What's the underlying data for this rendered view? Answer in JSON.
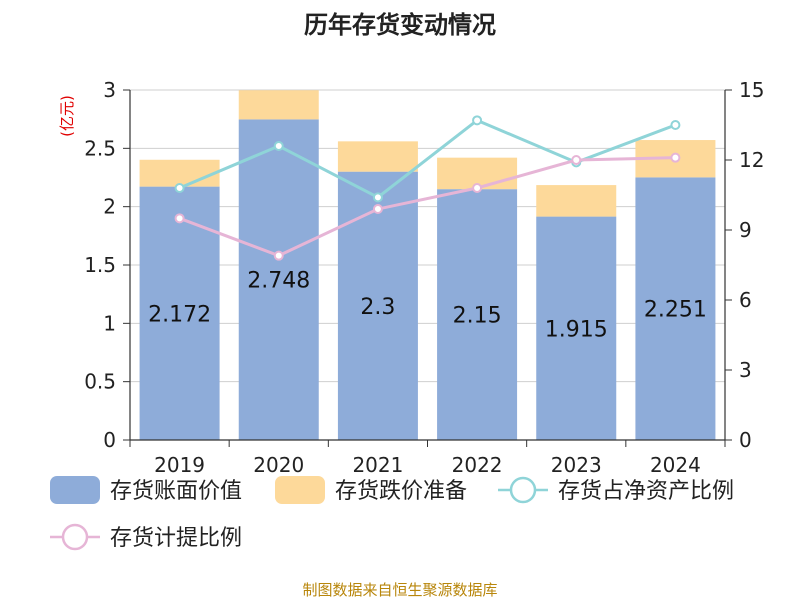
{
  "chart_data": {
    "type": "bar",
    "title": "历年存货变动情况",
    "categories": [
      "2019",
      "2020",
      "2021",
      "2022",
      "2023",
      "2024"
    ],
    "left_axis": {
      "unit": "(亿元)",
      "min": 0,
      "max": 3,
      "ticks": [
        "0",
        "0.5",
        "1",
        "1.5",
        "2",
        "2.5",
        "3"
      ]
    },
    "right_axis": {
      "min": 0,
      "max": 15,
      "ticks": [
        "0",
        "3",
        "6",
        "9",
        "12",
        "15"
      ]
    },
    "bar_series": [
      {
        "name": "存货账面价值",
        "color": "#8eacd9",
        "values": [
          2.172,
          2.748,
          2.3,
          2.15,
          1.915,
          2.251
        ],
        "labels": [
          "2.172",
          "2.748",
          "2.3",
          "2.15",
          "1.915",
          "2.251"
        ]
      },
      {
        "name": "存货跌价准备",
        "color": "#fdd99a",
        "values": [
          0.23,
          0.25,
          0.26,
          0.27,
          0.27,
          0.32
        ]
      }
    ],
    "line_series": [
      {
        "name": "存货占净资产比例",
        "color": "#8fd4d8",
        "axis": "right",
        "values": [
          10.8,
          12.6,
          10.4,
          13.7,
          11.9,
          13.5
        ]
      },
      {
        "name": "存货计提比例",
        "color": "#e6b5d6",
        "axis": "right",
        "values": [
          9.5,
          7.9,
          9.9,
          10.8,
          12.0,
          12.1
        ]
      }
    ],
    "grid": true,
    "legend": "bottom"
  },
  "source_text": "制图数据来自恒生聚源数据库"
}
